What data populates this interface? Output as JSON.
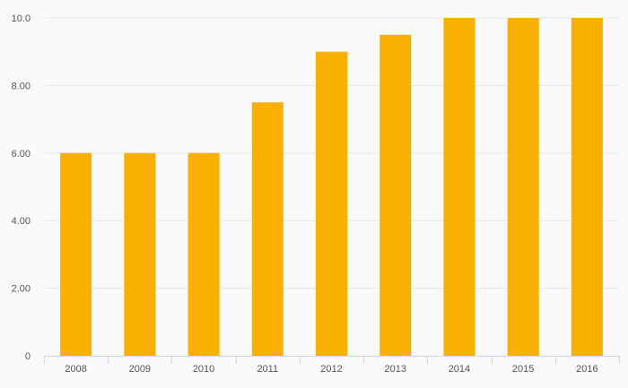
{
  "chart_data": {
    "type": "bar",
    "categories": [
      "2008",
      "2009",
      "2010",
      "2011",
      "2012",
      "2013",
      "2014",
      "2015",
      "2016"
    ],
    "values": [
      6.0,
      6.0,
      6.0,
      7.5,
      9.0,
      9.5,
      10.0,
      10.0,
      10.0
    ],
    "title": "",
    "xlabel": "",
    "ylabel": "",
    "ylim": [
      0,
      10
    ],
    "yticks": [
      0,
      2,
      4,
      6,
      8,
      10
    ],
    "ytick_labels": [
      "0",
      "2.00",
      "4.00",
      "6.00",
      "8.00",
      "10.0"
    ],
    "grid": true,
    "legend": "none",
    "bar_color": "#f9b000",
    "grid_color": "#e6e6e6",
    "axis_color": "#ccd6eb"
  }
}
